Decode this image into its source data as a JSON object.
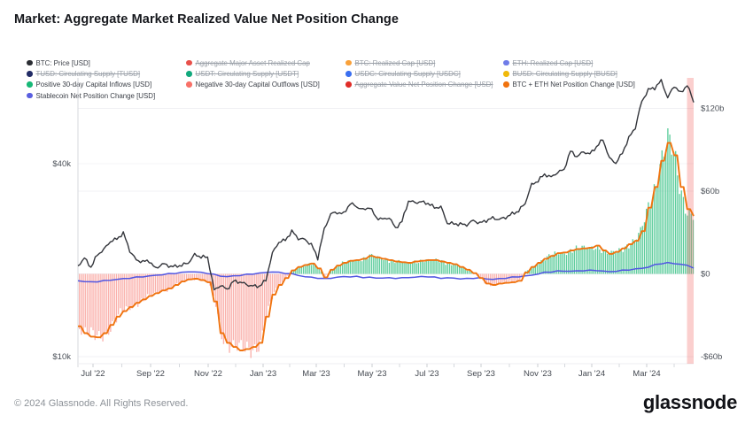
{
  "title": "Market: Aggregate Market Realized Value Net Position Change",
  "legend": {
    "columns": [
      {
        "items": [
          {
            "label": "BTC: Price [USD]",
            "color": "#2b2d33",
            "struck": false
          },
          {
            "label": "TUSD: Circulating Supply [TUSD]",
            "color": "#222c66",
            "struck": true
          },
          {
            "label": "Positive 30-day Capital Inflows [USD]",
            "color": "#17b877",
            "struck": false
          },
          {
            "label": "Stablecoin Net Position Change [USD]",
            "color": "#5a5fe0",
            "struck": false
          }
        ]
      },
      {
        "items": [
          {
            "label": "Aggregate Major Asset Realized Cap",
            "color": "#e8504a",
            "struck": true
          },
          {
            "label": "USDT: Circulating Supply [USDT]",
            "color": "#12a97d",
            "struck": true
          },
          {
            "label": "Negative 30-day Capital Outflows [USD]",
            "color": "#f87168",
            "struck": false
          }
        ]
      },
      {
        "items": [
          {
            "label": "BTC: Realized Cap [USD]",
            "color": "#f9a13a",
            "struck": true
          },
          {
            "label": "USDC: Circulating Supply [USDC]",
            "color": "#3a6ff0",
            "struck": true
          },
          {
            "label": "Aggregate Value Net Position Change [USD]",
            "color": "#e02d28",
            "struck": true
          }
        ]
      },
      {
        "items": [
          {
            "label": "ETH: Realized Cap [USD]",
            "color": "#6f7ce8",
            "struck": true
          },
          {
            "label": "BUSD: Circulating Supply [BUSD]",
            "color": "#f0b90b",
            "struck": true
          },
          {
            "label": "BTC + ETH Net Position Change [USD]",
            "color": "#f0730f",
            "struck": false
          }
        ]
      }
    ]
  },
  "chart_data": {
    "type": "mixed line + bar",
    "title": "Market: Aggregate Market Realized Value Net Position Change",
    "sampling": "weekly samples, mid-Jun 2022 to mid-Apr 2024",
    "x_ticks": [
      "Jul '22",
      "Sep '22",
      "Nov '22",
      "Jan '23",
      "Mar '23",
      "May '23",
      "Jul '23",
      "Sep '23",
      "Nov '23",
      "Jan '24",
      "Mar '24"
    ],
    "left_axis": {
      "scale": "log",
      "unit": "USD",
      "tick_labels": [
        "$40k",
        "$10k"
      ],
      "tick_values_usd": [
        40000,
        10000
      ]
    },
    "right_axis": {
      "scale": "linear",
      "unit": "billion USD",
      "tick_labels": [
        "$120b",
        "$60b",
        "$0",
        "-$60b"
      ],
      "tick_values_b": [
        120,
        60,
        0,
        -60
      ],
      "range_b": [
        -75,
        142
      ]
    },
    "grid": "horizontal only",
    "legend_position": "top",
    "highlight_band": {
      "name": "latest-period-highlight",
      "color": "#ef5350",
      "position": "right edge"
    },
    "series_meta": [
      {
        "name": "BTC: Price [USD]",
        "type": "line",
        "axis": "left",
        "color": "#33353b",
        "values_key": "btc_price_usd_k",
        "value_unit": "thousand USD"
      },
      {
        "name": "BTC + ETH Net Position Change [USD]",
        "type": "line",
        "axis": "right",
        "color": "#f0730f",
        "values_key": "net_position_change_usd_b",
        "value_unit": "billion USD"
      },
      {
        "name": "Positive 30-day Capital Inflows / Negative 30-day Capital Outflows [USD]",
        "type": "bar",
        "axis": "right",
        "color_positive": "#4ec892",
        "color_negative": "#f9a9a3",
        "values_key": "net_position_change_usd_b",
        "value_unit": "billion USD"
      },
      {
        "name": "Stablecoin Net Position Change [USD]",
        "type": "line",
        "axis": "right",
        "color": "#5a5fe0",
        "values_key": "stablecoin_net_position_change_usd_b",
        "value_unit": "billion USD"
      }
    ],
    "series": {
      "btc_price_usd_k": [
        19.2,
        20.3,
        19.0,
        20.8,
        21.6,
        22.9,
        23.3,
        24.3,
        21.4,
        20.0,
        19.8,
        19.9,
        18.8,
        19.5,
        19.2,
        19.1,
        19.3,
        19.6,
        20.8,
        20.5,
        20.4,
        16.1,
        16.7,
        16.2,
        17.2,
        17.1,
        16.8,
        16.6,
        16.6,
        17.3,
        21.0,
        22.8,
        23.1,
        24.6,
        23.4,
        23.2,
        22.4,
        20.3,
        24.9,
        27.9,
        28.2,
        27.9,
        30.1,
        29.4,
        28.7,
        29.3,
        27.2,
        26.8,
        27.2,
        25.2,
        26.4,
        30.6,
        30.3,
        30.4,
        30.1,
        29.2,
        29.3,
        26.1,
        26.0,
        25.9,
        25.8,
        26.6,
        26.1,
        26.6,
        27.1,
        26.8,
        27.2,
        27.9,
        28.5,
        30.1,
        34.4,
        35.4,
        37.1,
        36.3,
        37.6,
        38.3,
        43.8,
        42.1,
        43.6,
        42.9,
        45.2,
        47.6,
        41.6,
        40.2,
        43.2,
        48.1,
        51.9,
        62.5,
        68.1,
        69.0,
        72.6,
        64.2,
        70.1,
        66.4,
        70.5,
        62.4
      ],
      "net_position_change_usd_b": [
        -38,
        -43,
        -45.5,
        -46,
        -43,
        -37,
        -31,
        -27,
        -24,
        -21,
        -18.5,
        -16,
        -14,
        -12,
        -10.5,
        -8,
        -5.5,
        -4,
        -3.5,
        -4.5,
        -6,
        -20,
        -43,
        -50,
        -53,
        -55.5,
        -54.5,
        -53,
        -50,
        -31,
        -15,
        -8,
        -3,
        2.5,
        5,
        6.5,
        7.5,
        4,
        -2.5,
        3,
        6,
        8,
        9.5,
        10,
        11,
        13,
        12,
        11,
        10,
        9,
        8.5,
        8,
        9,
        9.5,
        10,
        10,
        9,
        8,
        7,
        5,
        3,
        0.5,
        -3,
        -7,
        -8,
        -7,
        -6.5,
        -6,
        -5,
        1,
        5,
        8,
        11,
        13,
        15,
        15.5,
        17,
        18,
        18.5,
        19,
        20.5,
        17,
        14.5,
        16,
        18.5,
        21.5,
        24,
        31,
        48,
        63,
        82,
        95,
        86,
        63,
        47,
        42
      ],
      "stablecoin_net_position_change_usd_b": [
        -5,
        -5.5,
        -6,
        -5.5,
        -5,
        -4.5,
        -4,
        -3.5,
        -3,
        -2.5,
        -2,
        -1.5,
        -1,
        -0.5,
        0,
        0.5,
        1,
        1.5,
        1.5,
        1,
        0.5,
        -0.5,
        -1.5,
        -2,
        -1.5,
        -1,
        -0.5,
        0,
        0.5,
        1,
        1.5,
        1,
        0.5,
        0,
        -1,
        -2,
        -2.5,
        -3,
        -3.5,
        -3,
        -2.5,
        -2,
        -2,
        -2,
        -2.5,
        -2.5,
        -3,
        -3,
        -3,
        -3,
        -3,
        -2.5,
        -2.5,
        -2,
        -2,
        -2.5,
        -3,
        -3,
        -3,
        -3.5,
        -3.5,
        -3,
        -3,
        -3.5,
        -4,
        -3.5,
        -3,
        -2.5,
        -2,
        -1.5,
        -1,
        0,
        1,
        1.5,
        2,
        2,
        2,
        2,
        2.5,
        2.5,
        2.5,
        2,
        1.5,
        2,
        2.5,
        3,
        3.5,
        4,
        5,
        6.5,
        7.5,
        8,
        7.5,
        7,
        6,
        4.5
      ]
    }
  },
  "footer": {
    "copyright": "© 2024 Glassnode. All Rights Reserved.",
    "brand": "glassnode"
  }
}
